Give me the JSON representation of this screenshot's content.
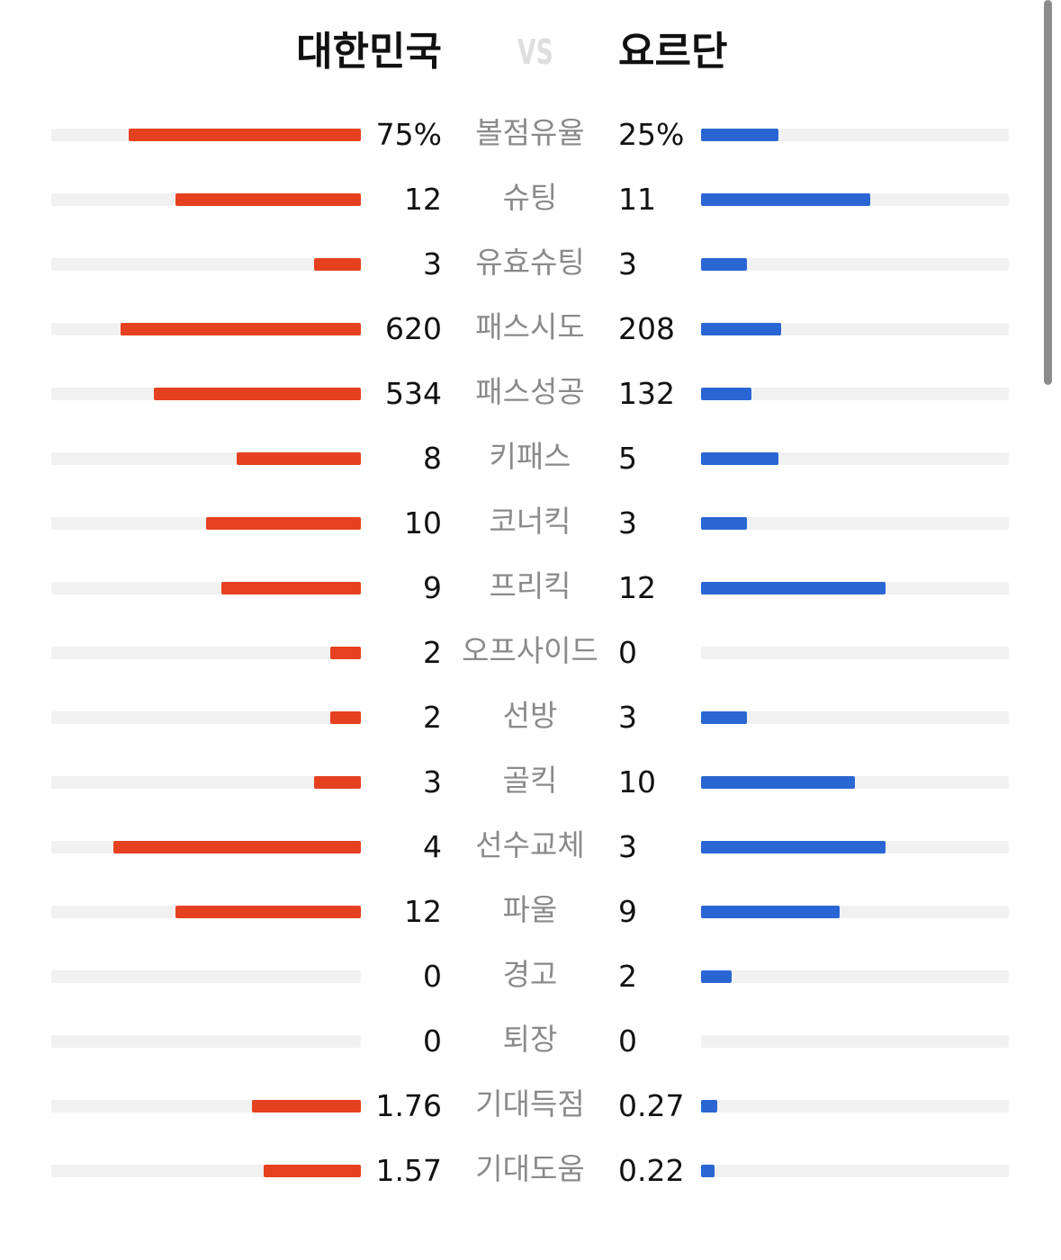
{
  "header": {
    "home_team": "대한민국",
    "vs": "VS",
    "away_team": "요르단"
  },
  "colors": {
    "home": "#e5401f",
    "away": "#2a66d3",
    "track": "#f1f1f1"
  },
  "stats": [
    {
      "label": "볼점유율",
      "home": "75%",
      "away": "25%",
      "home_fill": 0.75,
      "away_fill": 0.25
    },
    {
      "label": "슈팅",
      "home": "12",
      "away": "11",
      "home_fill": 0.6,
      "away_fill": 0.55
    },
    {
      "label": "유효슈팅",
      "home": "3",
      "away": "3",
      "home_fill": 0.15,
      "away_fill": 0.15
    },
    {
      "label": "패스시도",
      "home": "620",
      "away": "208",
      "home_fill": 0.775,
      "away_fill": 0.26
    },
    {
      "label": "패스성공",
      "home": "534",
      "away": "132",
      "home_fill": 0.6675,
      "away_fill": 0.165
    },
    {
      "label": "키패스",
      "home": "8",
      "away": "5",
      "home_fill": 0.4,
      "away_fill": 0.25
    },
    {
      "label": "코너킥",
      "home": "10",
      "away": "3",
      "home_fill": 0.5,
      "away_fill": 0.15
    },
    {
      "label": "프리킥",
      "home": "9",
      "away": "12",
      "home_fill": 0.45,
      "away_fill": 0.6
    },
    {
      "label": "오프사이드",
      "home": "2",
      "away": "0",
      "home_fill": 0.1,
      "away_fill": 0
    },
    {
      "label": "선방",
      "home": "2",
      "away": "3",
      "home_fill": 0.1,
      "away_fill": 0.15
    },
    {
      "label": "골킥",
      "home": "3",
      "away": "10",
      "home_fill": 0.15,
      "away_fill": 0.5
    },
    {
      "label": "선수교체",
      "home": "4",
      "away": "3",
      "home_fill": 0.8,
      "away_fill": 0.6
    },
    {
      "label": "파울",
      "home": "12",
      "away": "9",
      "home_fill": 0.6,
      "away_fill": 0.45
    },
    {
      "label": "경고",
      "home": "0",
      "away": "2",
      "home_fill": 0,
      "away_fill": 0.1
    },
    {
      "label": "퇴장",
      "home": "0",
      "away": "0",
      "home_fill": 0,
      "away_fill": 0
    },
    {
      "label": "기대득점",
      "home": "1.76",
      "away": "0.27",
      "home_fill": 0.352,
      "away_fill": 0.054
    },
    {
      "label": "기대도움",
      "home": "1.57",
      "away": "0.22",
      "home_fill": 0.314,
      "away_fill": 0.044
    }
  ]
}
